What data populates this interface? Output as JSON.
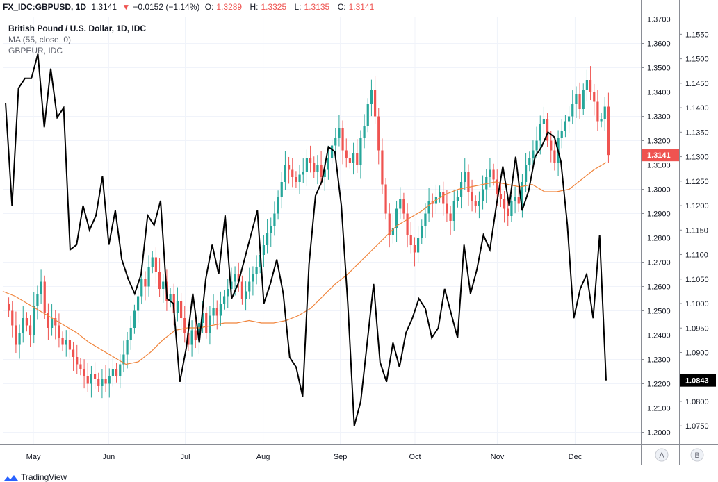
{
  "header": {
    "symbol": "FX_IDC:GBPUSD, 1D",
    "last": "1.3141",
    "change": "−0.0152 (−1.14%)",
    "open_label": "O:",
    "open": "1.3289",
    "high_label": "H:",
    "high": "1.3325",
    "low_label": "L:",
    "low": "1.3135",
    "close_label": "C:",
    "close": "1.3141",
    "down_arrow_icon": "triangle-down-icon"
  },
  "legend": {
    "title": "British Pound / U.S. Dollar, 1D, IDC",
    "ma": "MA (55, close, 0)",
    "compare": "GBPEUR, IDC"
  },
  "footer": {
    "brand": "TradingView",
    "logo_icon": "tradingview-logo-icon"
  },
  "axis_buttons": {
    "left": "A",
    "right": "B"
  },
  "colors": {
    "up": "#26a69a",
    "down": "#ef5350",
    "ma": "#f0833a",
    "compare": "#000000",
    "grid": "#f0f3fa"
  },
  "chart_data": {
    "type": "candlestick",
    "title": "British Pound / U.S. Dollar, 1D, IDC",
    "x_ticks": [
      "May",
      "Jun",
      "Jul",
      "Aug",
      "Sep",
      "Oct",
      "Nov",
      "Dec"
    ],
    "primary_axis": {
      "side": "left-of-price-scale",
      "ylim": [
        1.195,
        1.371
      ],
      "ticks": [
        "1.2000",
        "1.2100",
        "1.2200",
        "1.2300",
        "1.2400",
        "1.2500",
        "1.2600",
        "1.2700",
        "1.2800",
        "1.2900",
        "1.3000",
        "1.3100",
        "1.3200",
        "1.3300",
        "1.3400",
        "1.3500",
        "1.3600",
        "1.3700"
      ],
      "last_label": "1.3141"
    },
    "secondary_axis": {
      "ylim": [
        1.0712,
        1.1586
      ],
      "ticks": [
        "1.0750",
        "1.0800",
        "1.0850",
        "1.0900",
        "1.0950",
        "1.1000",
        "1.1050",
        "1.1100",
        "1.1150",
        "1.1200",
        "1.1250",
        "1.1300",
        "1.1350",
        "1.1400",
        "1.1450",
        "1.1500",
        "1.1550"
      ],
      "last_label": "1.0843"
    },
    "candles_close": [
      1.25,
      1.244,
      1.236,
      1.241,
      1.247,
      1.244,
      1.24,
      1.252,
      1.257,
      1.262,
      1.249,
      1.243,
      1.247,
      1.244,
      1.239,
      1.236,
      1.238,
      1.234,
      1.231,
      1.228,
      1.226,
      1.223,
      1.22,
      1.224,
      1.222,
      1.219,
      1.222,
      1.22,
      1.223,
      1.226,
      1.223,
      1.228,
      1.232,
      1.238,
      1.243,
      1.25,
      1.256,
      1.263,
      1.26,
      1.268,
      1.272,
      1.266,
      1.259,
      1.262,
      1.254,
      1.257,
      1.249,
      1.254,
      1.247,
      1.241,
      1.236,
      1.242,
      1.238,
      1.245,
      1.249,
      1.241,
      1.248,
      1.251,
      1.248,
      1.253,
      1.256,
      1.259,
      1.262,
      1.265,
      1.262,
      1.255,
      1.258,
      1.262,
      1.265,
      1.268,
      1.273,
      1.277,
      1.282,
      1.285,
      1.29,
      1.297,
      1.303,
      1.31,
      1.308,
      1.305,
      1.303,
      1.306,
      1.307,
      1.313,
      1.311,
      1.307,
      1.31,
      1.305,
      1.308,
      1.313,
      1.318,
      1.321,
      1.325,
      1.316,
      1.313,
      1.311,
      1.315,
      1.31,
      1.321,
      1.326,
      1.335,
      1.341,
      1.33,
      1.316,
      1.302,
      1.29,
      1.281,
      1.284,
      1.292,
      1.296,
      1.29,
      1.281,
      1.277,
      1.274,
      1.28,
      1.285,
      1.29,
      1.295,
      1.294,
      1.297,
      1.299,
      1.294,
      1.29,
      1.287,
      1.295,
      1.297,
      1.303,
      1.307,
      1.299,
      1.295,
      1.293,
      1.295,
      1.3,
      1.305,
      1.308,
      1.304,
      1.298,
      1.296,
      1.292,
      1.289,
      1.295,
      1.297,
      1.294,
      1.303,
      1.31,
      1.313,
      1.316,
      1.32,
      1.327,
      1.329,
      1.32,
      1.316,
      1.311,
      1.321,
      1.324,
      1.328,
      1.33,
      1.335,
      1.339,
      1.333,
      1.341,
      1.345,
      1.34,
      1.336,
      1.328,
      1.329,
      1.334,
      1.3141
    ],
    "ma_55": [
      1.258,
      1.256,
      1.253,
      1.25,
      1.247,
      1.244,
      1.241,
      1.237,
      1.234,
      1.231,
      1.228,
      1.229,
      1.233,
      1.238,
      1.242,
      1.243,
      1.243,
      1.244,
      1.245,
      1.245,
      1.246,
      1.245,
      1.245,
      1.246,
      1.248,
      1.251,
      1.256,
      1.261,
      1.265,
      1.27,
      1.275,
      1.28,
      1.285,
      1.288,
      1.291,
      1.295,
      1.298,
      1.3,
      1.301,
      1.302,
      1.303,
      1.302,
      1.301,
      1.302,
      1.299,
      1.299,
      1.3,
      1.304,
      1.308,
      1.311
    ],
    "compare_series": {
      "name": "GBPEUR, IDC",
      "values": [
        1.141,
        1.12,
        1.144,
        1.146,
        1.146,
        1.151,
        1.136,
        1.148,
        1.138,
        1.14,
        1.111,
        1.112,
        1.12,
        1.115,
        1.118,
        1.126,
        1.112,
        1.119,
        1.109,
        1.105,
        1.102,
        1.106,
        1.118,
        1.116,
        1.121,
        1.101,
        1.1,
        1.084,
        1.091,
        1.102,
        1.092,
        1.105,
        1.112,
        1.106,
        1.118,
        1.101,
        1.104,
        1.109,
        1.114,
        1.119,
        1.1,
        1.104,
        1.109,
        1.102,
        1.089,
        1.087,
        1.081,
        1.108,
        1.122,
        1.125,
        1.132,
        1.131,
        1.12,
        1.1,
        1.075,
        1.08,
        1.092,
        1.104,
        1.088,
        1.084,
        1.092,
        1.087,
        1.094,
        1.097,
        1.101,
        1.099,
        1.093,
        1.095,
        1.103,
        1.098,
        1.093,
        1.112,
        1.102,
        1.107,
        1.114,
        1.111,
        1.12,
        1.128,
        1.12,
        1.13,
        1.119,
        1.123,
        1.13,
        1.132,
        1.135,
        1.134,
        1.129,
        1.116,
        1.097,
        1.103,
        1.106,
        1.097,
        1.114,
        1.0843
      ]
    }
  }
}
